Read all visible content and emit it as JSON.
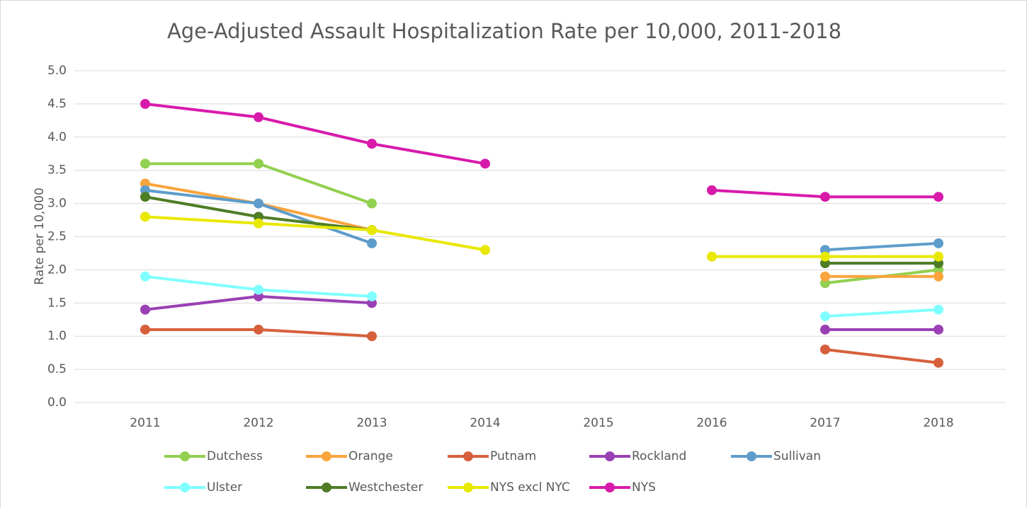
{
  "chart_data": {
    "type": "line",
    "title": "Age-Adjusted Assault Hospitalization Rate per 10,000, 2011-2018",
    "y_label": "Rate per 10,000",
    "categories": [
      "2011",
      "2012",
      "2013",
      "2014",
      "2015",
      "2016",
      "2017",
      "2018"
    ],
    "ylim": [
      0,
      5
    ],
    "yticks": [
      {
        "value": 0,
        "label": "0.0"
      },
      0.5,
      {
        "value": 1,
        "label": "1.0"
      },
      1.5,
      {
        "value": 2,
        "label": "2.0"
      },
      2.5,
      {
        "value": 3,
        "label": "3.0"
      },
      3.5,
      {
        "value": 4,
        "label": "4.0"
      },
      4.5,
      {
        "value": 5,
        "label": "5.0"
      }
    ],
    "grid": true,
    "legend": "bottom",
    "series": [
      {
        "name": "Dutchess",
        "color": "#92d050",
        "values": [
          3.6,
          3.6,
          3.0,
          null,
          null,
          null,
          1.8,
          2.0
        ]
      },
      {
        "name": "Orange",
        "color": "#f9a43c",
        "values": [
          3.3,
          3.0,
          2.6,
          null,
          null,
          null,
          1.9,
          1.9
        ]
      },
      {
        "name": "Putnam",
        "color": "#d6603c",
        "values": [
          1.1,
          1.1,
          1.0,
          null,
          null,
          null,
          0.8,
          0.6
        ]
      },
      {
        "name": "Rockland",
        "color": "#9a40b4",
        "values": [
          1.4,
          1.6,
          1.5,
          null,
          null,
          null,
          1.1,
          1.1
        ]
      },
      {
        "name": "Sullivan",
        "color": "#5e9dcb",
        "values": [
          3.2,
          3.0,
          2.4,
          null,
          null,
          null,
          2.3,
          2.4
        ]
      },
      {
        "name": "Ulster",
        "color": "#80ffff",
        "values": [
          1.9,
          1.7,
          1.6,
          null,
          null,
          null,
          1.3,
          1.4
        ]
      },
      {
        "name": "Westchester",
        "color": "#4e7d26",
        "values": [
          3.1,
          2.8,
          2.6,
          null,
          null,
          null,
          2.1,
          2.1
        ]
      },
      {
        "name": "NYS excl NYC",
        "color": "#e8e800",
        "values": [
          2.8,
          2.7,
          2.6,
          2.3,
          null,
          2.2,
          2.2,
          2.2
        ]
      },
      {
        "name": "NYS",
        "color": "#d81aab",
        "values": [
          4.5,
          4.3,
          3.9,
          3.6,
          null,
          3.2,
          3.1,
          3.1
        ]
      }
    ]
  }
}
